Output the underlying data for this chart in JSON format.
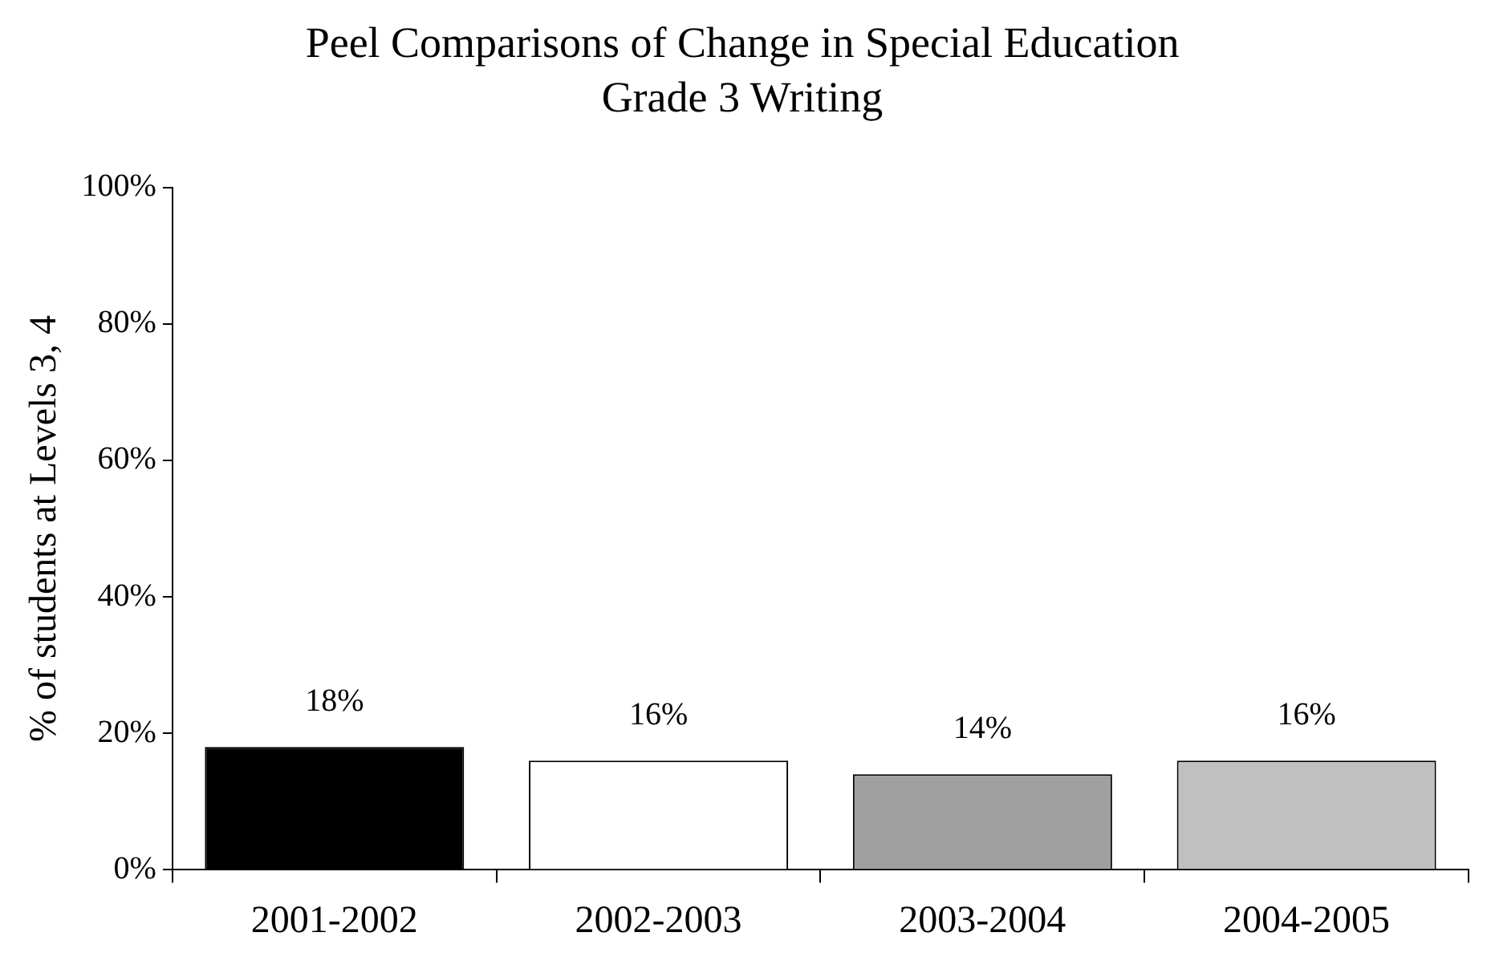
{
  "chart_data": {
    "type": "bar",
    "title": "Peel Comparisons of Change in Special Education",
    "subtitle": "Grade 3 Writing",
    "ylabel": "% of students at Levels 3, 4",
    "categories": [
      "2001-2002",
      "2002-2003",
      "2003-2004",
      "2004-2005"
    ],
    "values": [
      18,
      16,
      14,
      16
    ],
    "colors": [
      "#000000",
      "#ffffff",
      "#a0a0a0",
      "#c0c0c0"
    ],
    "value_labels": [
      "18%",
      "16%",
      "14%",
      "16%"
    ],
    "ylim": [
      0,
      100
    ],
    "yticks": [
      {
        "value": 0,
        "label": "0%"
      },
      {
        "value": 20,
        "label": "20%"
      },
      {
        "value": 40,
        "label": "40%"
      },
      {
        "value": 60,
        "label": "60%"
      },
      {
        "value": 80,
        "label": "80%"
      },
      {
        "value": 100,
        "label": "100%"
      }
    ],
    "grid": false,
    "legend": false
  }
}
